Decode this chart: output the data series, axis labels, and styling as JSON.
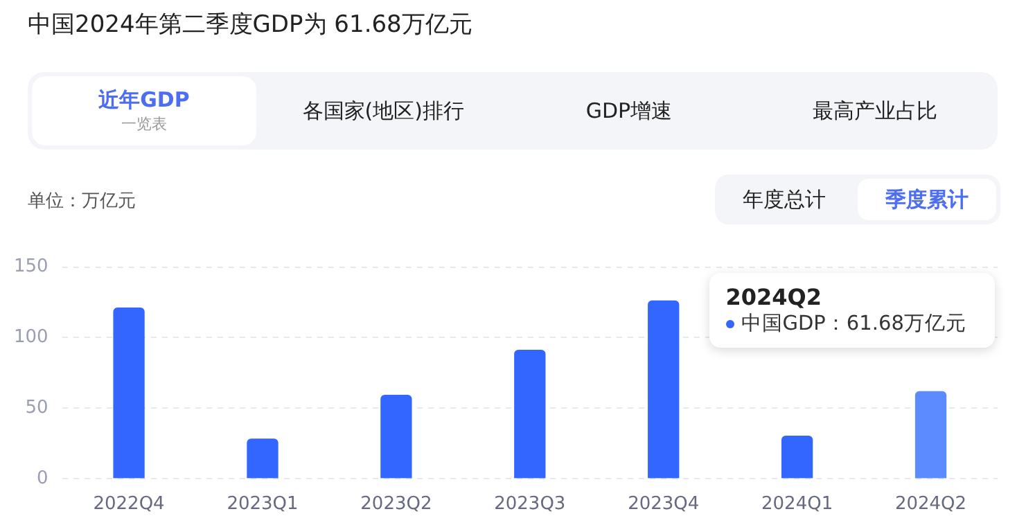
{
  "chart_data": {
    "type": "bar",
    "title": "中国2024年第二季度GDP为 61.68万亿元",
    "ylabel": "单位：万亿元",
    "categories": [
      "2022Q4",
      "2023Q1",
      "2023Q2",
      "2023Q3",
      "2023Q4",
      "2024Q1",
      "2024Q2"
    ],
    "values": [
      121,
      28,
      59,
      91,
      126,
      30,
      61.68
    ],
    "colors": [
      "#3366ff",
      "#3366ff",
      "#3366ff",
      "#3366ff",
      "#3366ff",
      "#3366ff",
      "#5b8bff"
    ],
    "ylim": [
      0,
      150
    ],
    "yticks": [
      0,
      50,
      100,
      150
    ],
    "grid": "y",
    "legend": false,
    "annotations": [
      "近年GDP",
      "一览表",
      "各国家(地区)排行",
      "GDP增速",
      "最高产业占比",
      "年度总计",
      "季度累计",
      {
        "text": "2024Q2\n中国GDP：61.68万亿元",
        "x": "2024Q2",
        "y": 61.68
      }
    ]
  }
}
